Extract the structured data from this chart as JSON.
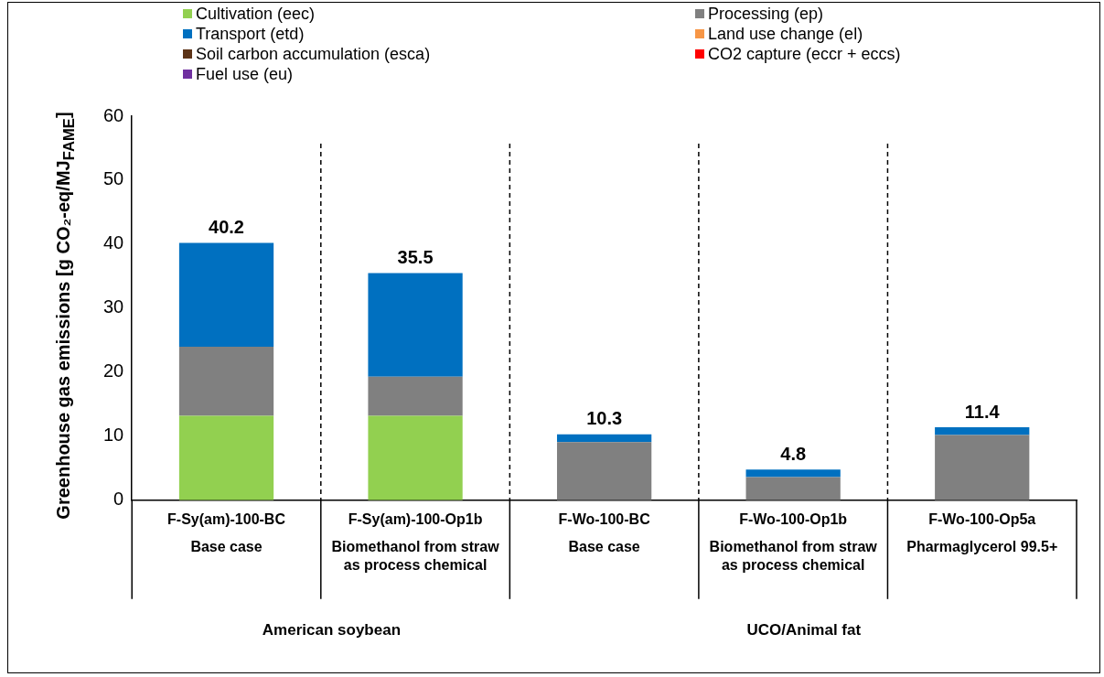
{
  "chart_data": {
    "type": "bar",
    "stacked": true,
    "ylabel": "Greenhouse gas emissions [g CO₂-eq/MJ$_{FAME}$]",
    "categories": [
      "F-Sy(am)-100-BC",
      "F-Sy(am)-100-Op1b",
      "F-Wo-100-BC",
      "F-Wo-100-Op1b",
      "F-Wo-100-Op5a"
    ],
    "series": [
      {
        "name": "Cultivation (eec)",
        "color": "#92d050",
        "values": [
          13.2,
          13.2,
          0,
          0,
          0
        ]
      },
      {
        "name": "Processing (ep)",
        "color": "#808080",
        "values": [
          10.8,
          6.1,
          9.1,
          3.6,
          10.2
        ]
      },
      {
        "name": "Transport (etd)",
        "color": "#0070c0",
        "values": [
          16.2,
          16.2,
          1.2,
          1.2,
          1.2
        ]
      },
      {
        "name": "Land use change (el)",
        "color": "#f79646",
        "values": [
          0,
          0,
          0,
          0,
          0
        ]
      },
      {
        "name": "Soil carbon accumulation (esca)",
        "color": "#5c3317",
        "values": [
          0,
          0,
          0,
          0,
          0
        ]
      },
      {
        "name": "CO2 capture (eccr + eccs)",
        "color": "#ff0000",
        "values": [
          0,
          0,
          0,
          0,
          0
        ]
      },
      {
        "name": "Fuel use (eu)",
        "color": "#7030a0",
        "values": [
          0,
          0,
          0,
          0,
          0
        ]
      }
    ],
    "totals": [
      "40.2",
      "35.5",
      "10.3",
      "4.8",
      "11.4"
    ],
    "ylim": [
      0,
      60
    ],
    "yticks": [
      0,
      10,
      20,
      30,
      40,
      50,
      60
    ],
    "grid": false,
    "legend": "top",
    "annotations": [
      "Base case",
      "Biomethanol from straw as process chemical",
      "Base case",
      "Biomethanol from straw as process chemical",
      "Pharmaglycerol 99.5+",
      "American soybean",
      "UCO/Animal fat"
    ]
  }
}
